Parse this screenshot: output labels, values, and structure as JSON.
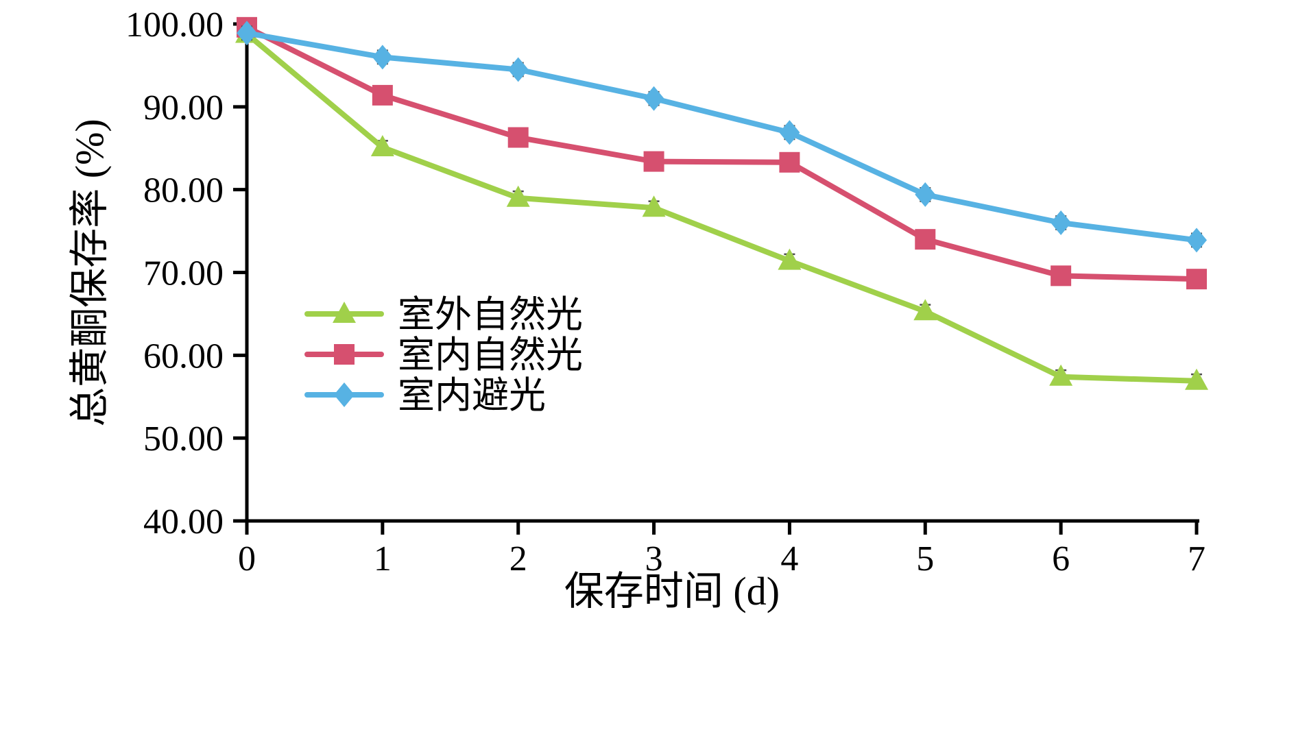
{
  "chart_data": {
    "type": "line",
    "title": "",
    "xlabel": "保存时间 (d)",
    "ylabel": "总黄酮保存率 (%)",
    "x": [
      0,
      1,
      2,
      3,
      4,
      5,
      6,
      7
    ],
    "xlim": [
      0,
      7
    ],
    "ylim": [
      40,
      100
    ],
    "x_tick_labels": [
      "0",
      "1",
      "2",
      "3",
      "4",
      "5",
      "6",
      "7"
    ],
    "y_tick_values": [
      40,
      50,
      60,
      70,
      80,
      90,
      100
    ],
    "y_tick_labels": [
      "40.00",
      "50.00",
      "60.00",
      "70.00",
      "80.00",
      "90.00",
      "100.00"
    ],
    "grid": false,
    "legend_position": "inside-left-middle",
    "axis_color": "#000000",
    "error_bar_color": "#4d4d4d",
    "series": [
      {
        "name": "室外自然光",
        "marker": "triangle",
        "color": "#a0d04a",
        "error": 0.8,
        "values": [
          98.8,
          85.1,
          79.0,
          77.8,
          71.4,
          65.3,
          57.4,
          56.9
        ]
      },
      {
        "name": "室内自然光",
        "marker": "square",
        "color": "#d6506f",
        "error": 0.8,
        "values": [
          99.6,
          91.4,
          86.3,
          83.4,
          83.3,
          74.0,
          69.6,
          69.2
        ]
      },
      {
        "name": "室内避光",
        "marker": "diamond",
        "color": "#57b2e3",
        "error": 0.8,
        "values": [
          98.9,
          96.0,
          94.5,
          91.0,
          86.9,
          79.4,
          76.0,
          73.9
        ]
      }
    ]
  }
}
